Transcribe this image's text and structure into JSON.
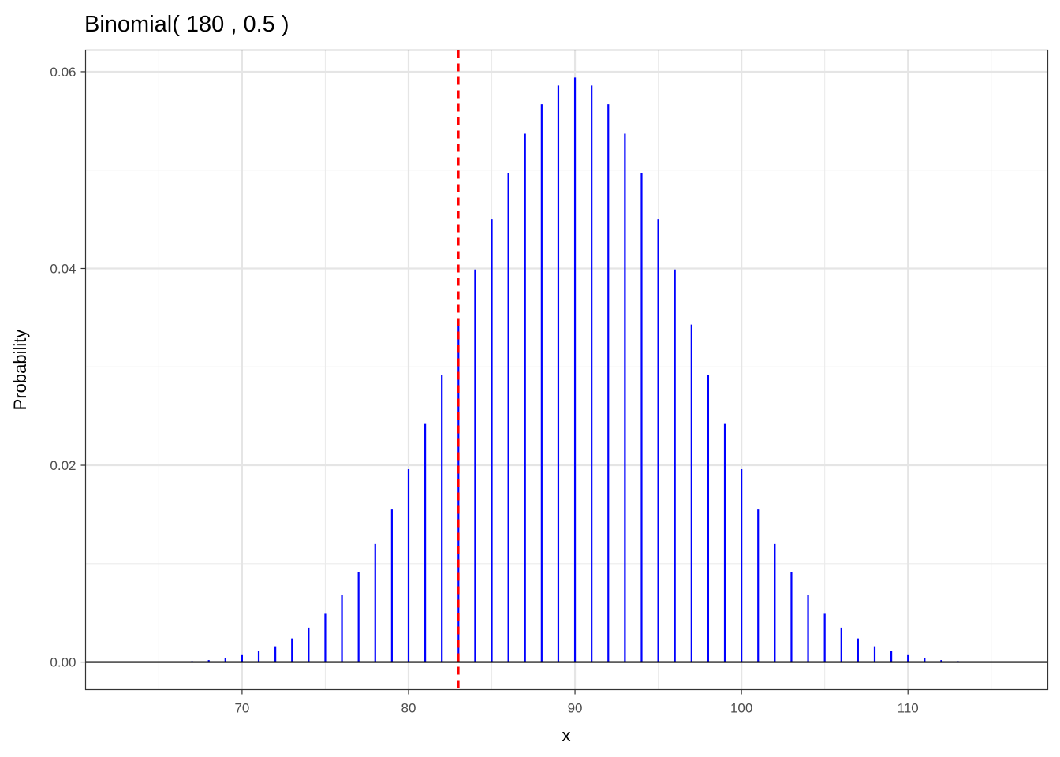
{
  "chart_data": {
    "type": "bar",
    "title": "Binomial( 180 , 0.5 )",
    "xlabel": "x",
    "ylabel": "Probability",
    "xlim": [
      60.6,
      118.4
    ],
    "ylim": [
      -0.0028,
      0.0622
    ],
    "x_ticks": [
      70,
      80,
      90,
      100,
      110
    ],
    "x_tick_labels": [
      "70",
      "80",
      "90",
      "100",
      "110"
    ],
    "x_minor_ticks": [
      65,
      75,
      85,
      95,
      105,
      115
    ],
    "y_ticks": [
      0.0,
      0.02,
      0.04,
      0.06
    ],
    "y_tick_labels": [
      "0.00",
      "0.02",
      "0.04",
      "0.06"
    ],
    "y_minor_ticks": [
      0.01,
      0.03,
      0.05
    ],
    "grid": true,
    "bar_color": "#0000ff",
    "reference_line": {
      "x": 83,
      "color": "#ff0000",
      "style": "dashed"
    },
    "baseline": {
      "y": 0,
      "color": "#000000"
    },
    "x": [
      67,
      68,
      69,
      70,
      71,
      72,
      73,
      74,
      75,
      76,
      77,
      78,
      79,
      80,
      81,
      82,
      83,
      84,
      85,
      86,
      87,
      88,
      89,
      90,
      91,
      92,
      93,
      94,
      95,
      96,
      97,
      98,
      99,
      100,
      101,
      102,
      103,
      104,
      105,
      106,
      107,
      108,
      109,
      110,
      111,
      112,
      113
    ],
    "values": [
      0.0001,
      0.0002,
      0.0004,
      0.0007,
      0.0011,
      0.0016,
      0.0024,
      0.0035,
      0.0049,
      0.0068,
      0.0091,
      0.012,
      0.0155,
      0.0196,
      0.0242,
      0.0292,
      0.0343,
      0.0399,
      0.045,
      0.0497,
      0.0537,
      0.0567,
      0.0586,
      0.0594,
      0.0586,
      0.0567,
      0.0537,
      0.0497,
      0.045,
      0.0399,
      0.0343,
      0.0292,
      0.0242,
      0.0196,
      0.0155,
      0.012,
      0.0091,
      0.0068,
      0.0049,
      0.0035,
      0.0024,
      0.0016,
      0.0011,
      0.0007,
      0.0004,
      0.0002,
      0.0001
    ]
  }
}
